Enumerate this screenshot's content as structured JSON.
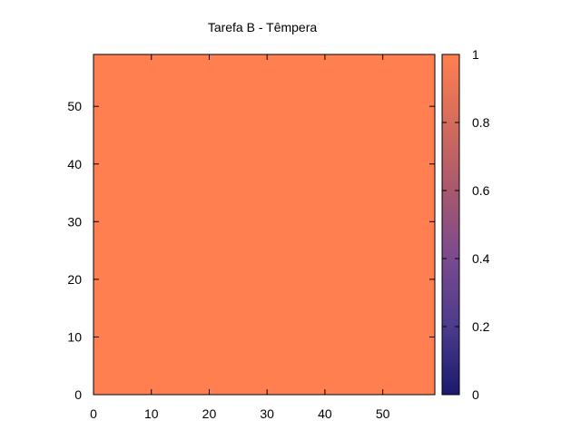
{
  "chart_data": {
    "type": "heatmap",
    "title": "Tarefa B - Têmpera",
    "xlabel": "",
    "ylabel": "",
    "xlim": [
      0,
      59
    ],
    "ylim": [
      0,
      59
    ],
    "x_ticks": [
      0,
      10,
      20,
      30,
      40,
      50
    ],
    "y_ticks": [
      0,
      10,
      20,
      30,
      40,
      50
    ],
    "grid": false,
    "cell_value": 1,
    "cell_color": "#ff7f50",
    "colorbar": {
      "range": [
        0,
        1
      ],
      "ticks": [
        "0",
        "0.2",
        "0.4",
        "0.6",
        "0.8",
        "1"
      ],
      "colors": [
        "#1a1a6e",
        "#4c3b8c",
        "#7a4a8f",
        "#a8586e",
        "#d46c5c",
        "#ff7f50"
      ]
    }
  }
}
